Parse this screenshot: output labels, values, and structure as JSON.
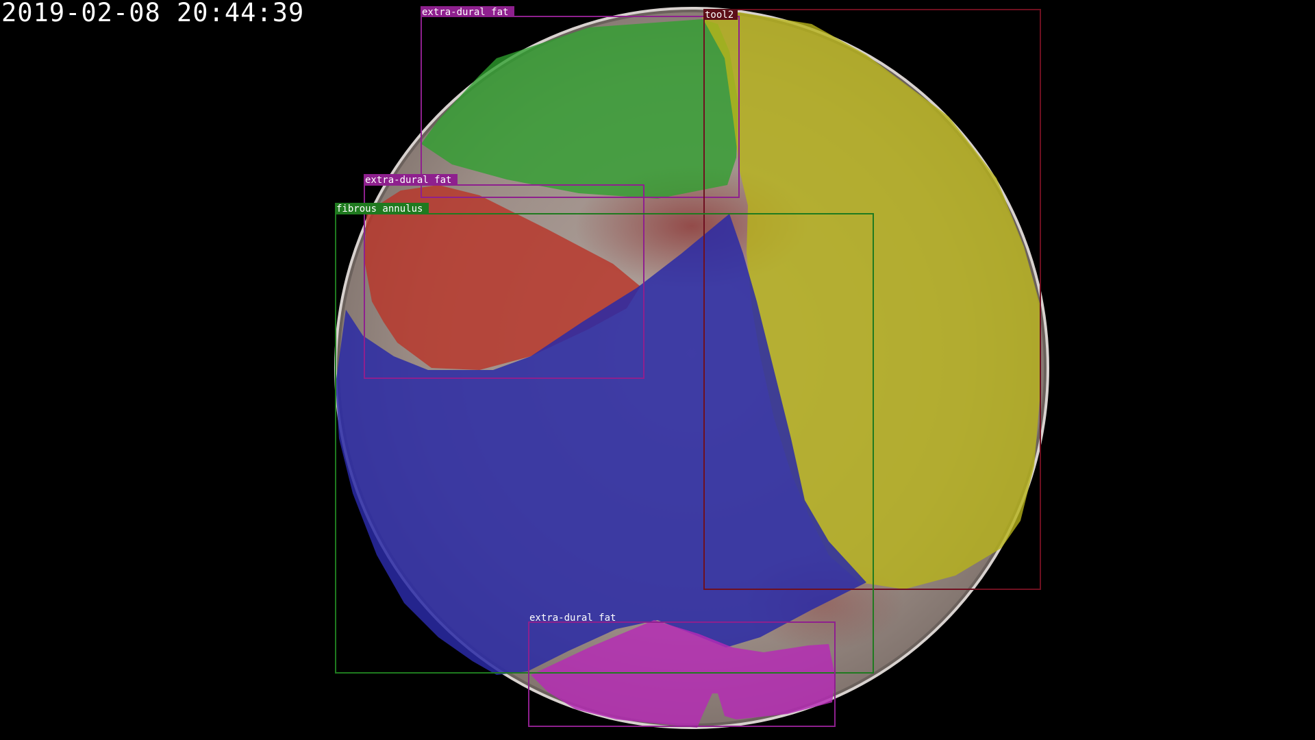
{
  "timestamp": "2019-02-08 20:44:39",
  "scene": {
    "icon": "endoscope-view-icon",
    "background_color": "#000000",
    "tissue_color": "#a59690"
  },
  "annotations": [
    {
      "id": "extra-dural-fat-top",
      "label": "extra-dural fat",
      "mask_color": "#2ea02e",
      "box_color": "#8e208e",
      "label_bg": "#8e208e",
      "label_text_color": "#ffffff"
    },
    {
      "id": "tool2",
      "label": "tool2",
      "mask_color": "#b8b41a",
      "box_color": "#6e1020",
      "label_bg": "#5c0e18",
      "label_text_color": "#ffffff"
    },
    {
      "id": "extra-dural-fat-middle",
      "label": "extra-dural fat",
      "mask_color": "#b8362a",
      "box_color": "#8e208e",
      "label_bg": "#8e208e",
      "label_text_color": "#ffffff"
    },
    {
      "id": "fibrous-annulus",
      "label": "fibrous annulus",
      "mask_color": "#2a2aa6",
      "box_color": "#1f7a1f",
      "label_bg": "#1f7a1f",
      "label_text_color": "#ffffff"
    },
    {
      "id": "extra-dural-fat-bottom",
      "label": "extra-dural fat",
      "mask_color": "#b62ab6",
      "box_color": "#8e208e",
      "label_bg": "#8e208e",
      "label_text_color": "#ffffff"
    }
  ]
}
